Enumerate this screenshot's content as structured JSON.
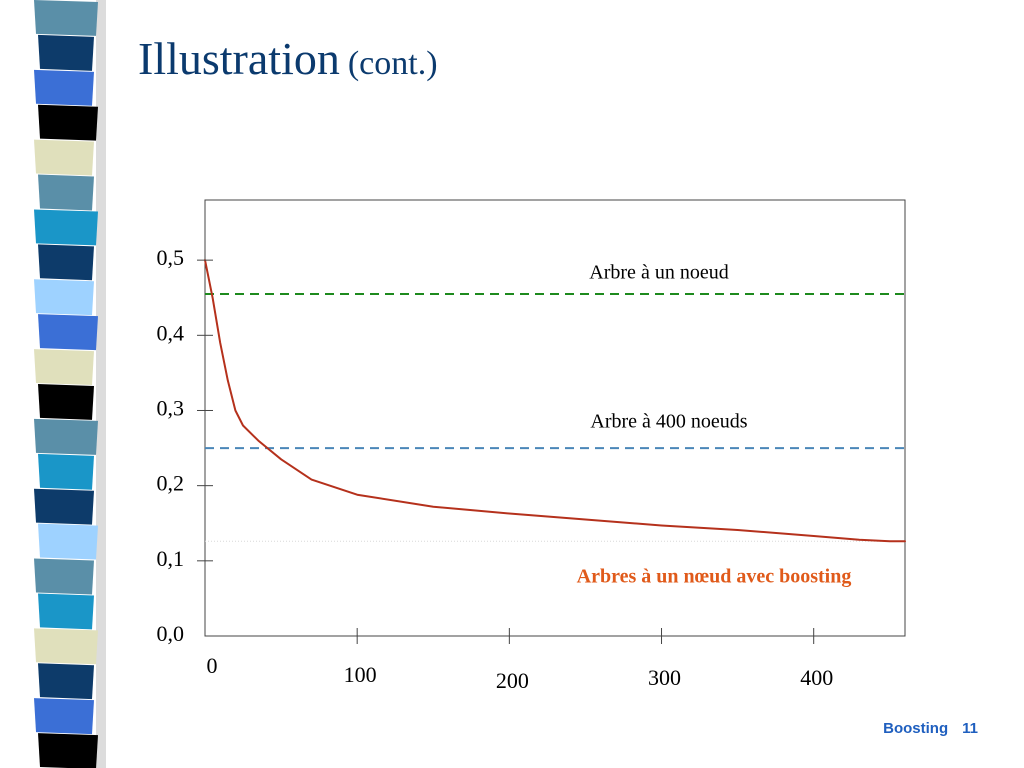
{
  "slide": {
    "title": "Illustration",
    "subtitle": "(cont.)",
    "footer_label": "Boosting",
    "page_number": "11",
    "strip_colors": [
      "#5a8fa8",
      "#0d3b6a",
      "#3b6fd6",
      "#000000",
      "#e0e0bc",
      "#5a8fa8",
      "#1a96c8",
      "#0d3b6a",
      "#9ed2ff",
      "#3b6fd6",
      "#e0e0bc",
      "#000000",
      "#5a8fa8",
      "#1a96c8",
      "#0d3b6a",
      "#9ed2ff",
      "#5a8fa8",
      "#1a96c8",
      "#e0e0bc",
      "#0d3b6a",
      "#3b6fd6",
      "#000000"
    ]
  },
  "chart_data": {
    "type": "line",
    "title": "",
    "xlabel": "",
    "ylabel": "",
    "xlim": [
      0,
      460
    ],
    "ylim": [
      0,
      0.58
    ],
    "x_ticks": [
      {
        "value": 0,
        "label": "0"
      },
      {
        "value": 100,
        "label": "100"
      },
      {
        "value": 200,
        "label": "200"
      },
      {
        "value": 300,
        "label": "300"
      },
      {
        "value": 400,
        "label": "400"
      }
    ],
    "y_ticks": [
      {
        "value": 0.0,
        "label": "0,0"
      },
      {
        "value": 0.1,
        "label": "0,1"
      },
      {
        "value": 0.2,
        "label": "0,2"
      },
      {
        "value": 0.3,
        "label": "0,3"
      },
      {
        "value": 0.4,
        "label": "0,4"
      },
      {
        "value": 0.5,
        "label": "0,5"
      }
    ],
    "grid": false,
    "series": [
      {
        "name": "Arbres à un nœud avec boosting",
        "color": "#b5311c",
        "x": [
          0,
          5,
          10,
          15,
          20,
          25,
          35,
          50,
          70,
          100,
          150,
          200,
          250,
          300,
          350,
          400,
          430,
          450,
          460
        ],
        "y": [
          0.5,
          0.45,
          0.39,
          0.34,
          0.3,
          0.28,
          0.26,
          0.235,
          0.208,
          0.188,
          0.172,
          0.163,
          0.155,
          0.147,
          0.141,
          0.133,
          0.128,
          0.126,
          0.126
        ]
      }
    ],
    "reference_lines": [
      {
        "name": "Arbre à un noeud",
        "y": 0.455,
        "color": "#1e8a1e"
      },
      {
        "name": "Arbre à 400 noeuds",
        "y": 0.25,
        "color": "#4a86b8"
      }
    ],
    "annotations": [
      {
        "text": "Arbre à un noeud",
        "color": "#000000"
      },
      {
        "text": "Arbre à 400 noeuds",
        "color": "#000000"
      },
      {
        "text": "Arbres à un nœud avec boosting",
        "color": "#e05a1a"
      }
    ]
  }
}
